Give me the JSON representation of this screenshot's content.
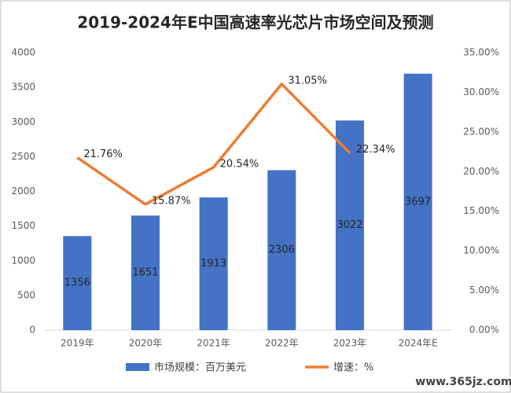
{
  "chart_data": {
    "type": "bar_line",
    "title": "2019-2024年E中国高速率光芯片市场空间及预测",
    "categories": [
      "2019年",
      "2020年",
      "2021年",
      "2022年",
      "2023年",
      "2024年E"
    ],
    "series": [
      {
        "name": "市场规模：百万美元",
        "color": "#4472c4",
        "type": "bar",
        "axis": "y",
        "values": [
          1356,
          1651,
          1913,
          2306,
          3022,
          3697
        ]
      },
      {
        "name": "增速：%",
        "color": "#ed7d31",
        "type": "line",
        "axis": "y2",
        "values": [
          21.76,
          15.87,
          20.54,
          31.05,
          22.34,
          null
        ],
        "value_labels": [
          "21.76%",
          "15.87%",
          "20.54%",
          "31.05%",
          "22.34%",
          null
        ]
      }
    ],
    "ylim": [
      0,
      4000
    ],
    "yticks": [
      0,
      500,
      1000,
      1500,
      2000,
      2500,
      3000,
      3500,
      4000
    ],
    "y2lim": [
      0,
      35
    ],
    "y2ticks": [
      {
        "value": 0,
        "label": "0.00%"
      },
      {
        "value": 5,
        "label": "5.00%"
      },
      {
        "value": 10,
        "label": "10.00%"
      },
      {
        "value": 15,
        "label": "15.00%"
      },
      {
        "value": 20,
        "label": "20.00%"
      },
      {
        "value": 25,
        "label": "25.00%"
      },
      {
        "value": 30,
        "label": "30.00%"
      },
      {
        "value": 35,
        "label": "35.00%"
      }
    ],
    "legend": "bottom",
    "watermark": "www.365jz.com"
  }
}
